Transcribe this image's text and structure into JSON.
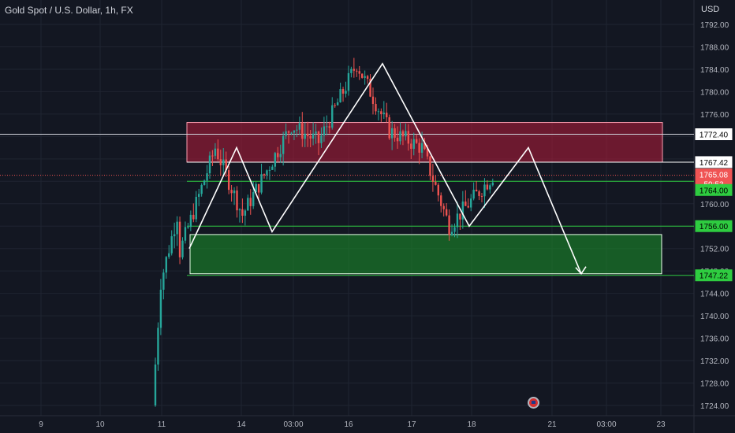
{
  "header": {
    "title": "Gold Spot / U.S. Dollar, 1h, FX",
    "currency": "USD"
  },
  "price_axis": {
    "ticks": [
      "1792.00",
      "1788.00",
      "1784.00",
      "1780.00",
      "1776.00",
      "1772.00",
      "1768.00",
      "1764.00",
      "1760.00",
      "1756.00",
      "1752.00",
      "1748.00",
      "1744.00",
      "1740.00",
      "1736.00",
      "1732.00",
      "1728.00",
      "1724.00"
    ]
  },
  "time_axis": {
    "labels": [
      "9",
      "10",
      "11",
      "14",
      "03:00",
      "16",
      "17",
      "18",
      "21",
      "03:00",
      "23"
    ]
  },
  "price_labels": [
    {
      "text": "1772.40",
      "kind": "outline"
    },
    {
      "text": "1767.42",
      "kind": "outline"
    },
    {
      "text": "1765.08",
      "kind": "red"
    },
    {
      "text": "59:53",
      "kind": "red"
    },
    {
      "text": "1764.00",
      "kind": "green"
    },
    {
      "text": "1756.00",
      "kind": "green"
    },
    {
      "text": "1747.22",
      "kind": "green"
    }
  ],
  "chart_data": {
    "type": "candlestick",
    "title": "Gold Spot / U.S. Dollar, 1h, FX",
    "ylabel": "USD",
    "ylim": [
      1722,
      1795
    ],
    "horizontal_lines": [
      1772.4,
      1767.42,
      1764.0,
      1756.0,
      1747.22
    ],
    "current_price": 1765.08,
    "countdown": "59:53",
    "zones": [
      {
        "name": "resistance-zone",
        "from": 1767.42,
        "to": 1774.5,
        "color": "#b71c3a"
      },
      {
        "name": "support-zone",
        "from": 1747.5,
        "to": 1754.5,
        "color": "#1b8a2a"
      }
    ],
    "pattern_path": [
      1752,
      1770,
      1755,
      1785,
      1756,
      1770,
      1747.5
    ],
    "candles_segments": [
      {
        "from": 1724,
        "to": 1746,
        "count": 3
      },
      {
        "from": 1746,
        "to": 1758,
        "count": 6
      },
      {
        "from": 1750,
        "to": 1770,
        "count": 14
      },
      {
        "from": 1770,
        "to": 1758,
        "count": 10
      },
      {
        "from": 1758,
        "to": 1774,
        "count": 18
      },
      {
        "from": 1774,
        "to": 1771,
        "count": 10
      },
      {
        "from": 1771,
        "to": 1785,
        "count": 14
      },
      {
        "from": 1785,
        "to": 1773,
        "count": 12
      },
      {
        "from": 1773,
        "to": 1770,
        "count": 12
      },
      {
        "from": 1770,
        "to": 1756,
        "count": 10
      },
      {
        "from": 1756,
        "to": 1765,
        "count": 16
      }
    ]
  },
  "colors": {
    "up": "#26a69a",
    "down": "#ef5350",
    "grid": "#1f2431",
    "axis_text": "#b2b5be",
    "pattern": "#ffffff",
    "level_line": "#2ecc40",
    "resistance_border": "#ff9eb0",
    "label_green": "#2ecc40",
    "label_red": "#f05454"
  },
  "event_icon": "us-flag-icon"
}
